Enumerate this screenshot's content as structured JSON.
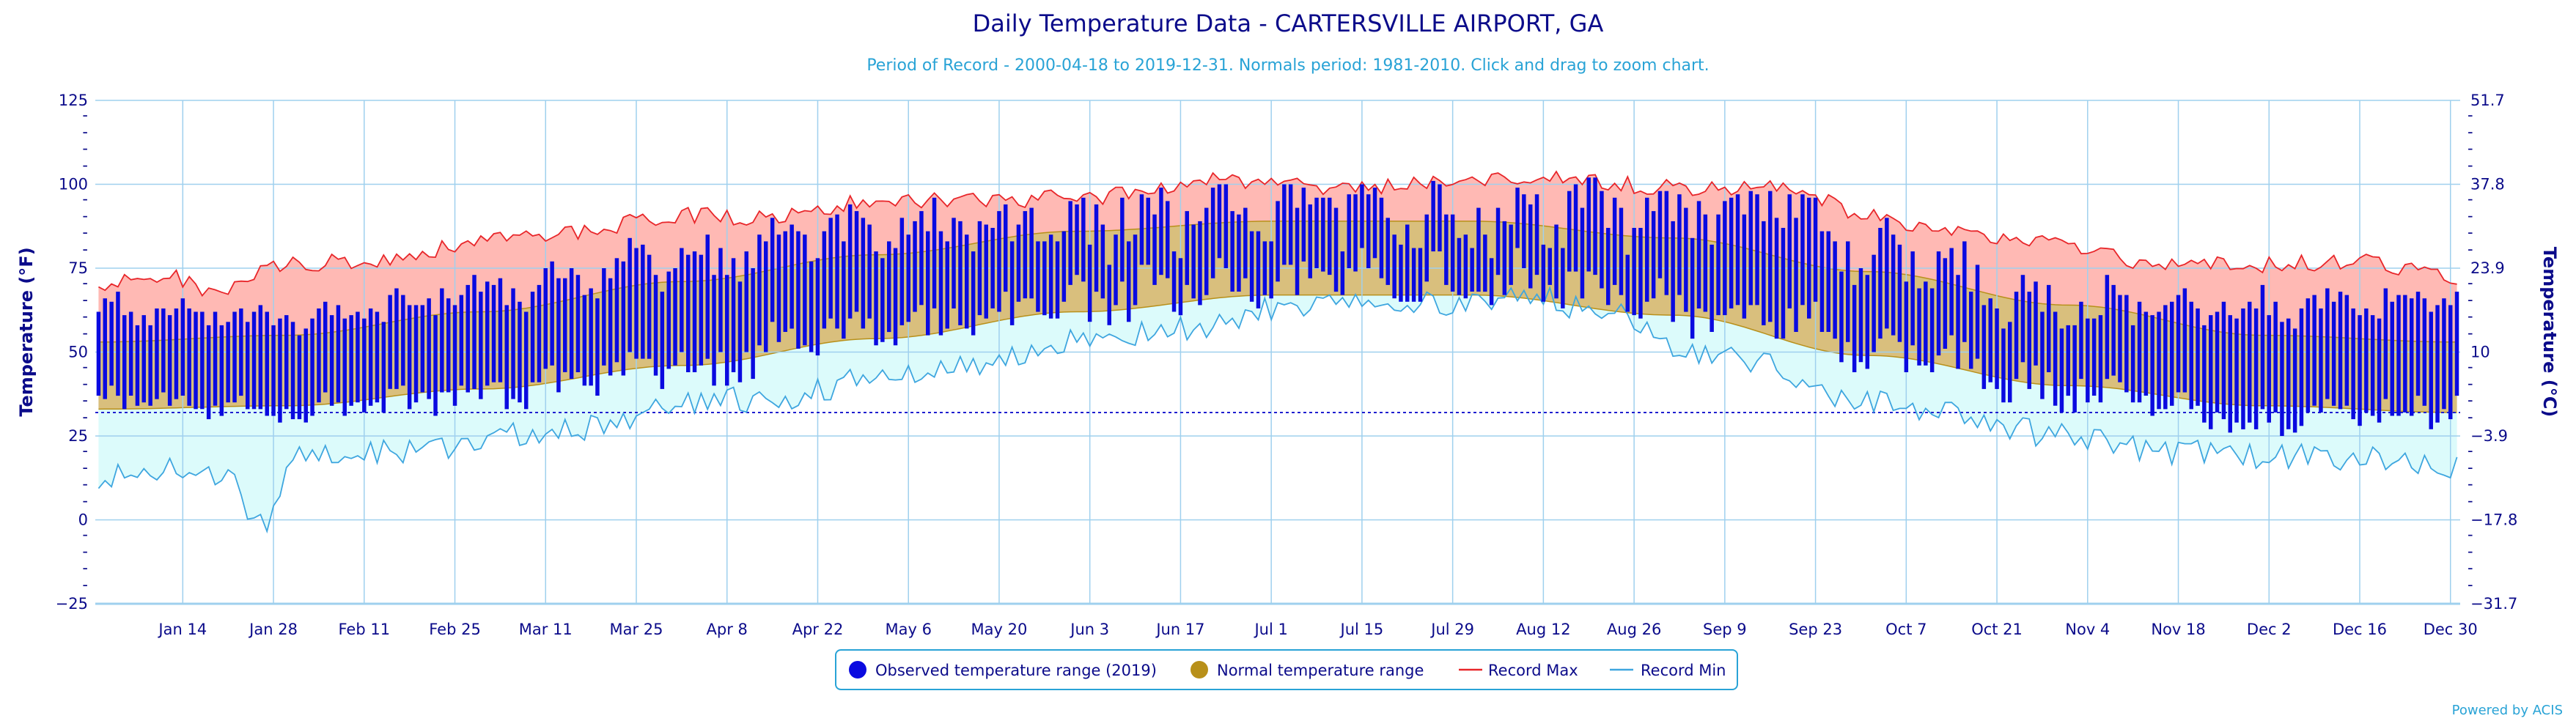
{
  "chart_data": {
    "type": "bar",
    "title": "Daily Temperature Data - CARTERSVILLE AIRPORT, GA",
    "subtitle": "Period of Record - 2000-04-18 to 2019-12-31. Normals period: 1981-2010. Click and drag to zoom chart.",
    "credit": "Powered by ACIS",
    "ylabel_left": "Temperature (°F)",
    "ylabel_right": "Temperature (°C)",
    "ylim": [
      -25,
      125
    ],
    "y_ticks_f": [
      "125",
      "100",
      "75",
      "50",
      "25",
      "0",
      "−25"
    ],
    "y_ticks_c": [
      "51.7",
      "37.8",
      "23.9",
      "10",
      "−3.9",
      "−17.8",
      "−31.7"
    ],
    "x_ticks": [
      "Jan 14",
      "Jan 28",
      "Feb 11",
      "Feb 25",
      "Mar 11",
      "Mar 25",
      "Apr 8",
      "Apr 22",
      "May 6",
      "May 20",
      "Jun 3",
      "Jun 17",
      "Jul 1",
      "Jul 15",
      "Jul 29",
      "Aug 12",
      "Aug 26",
      "Sep 9",
      "Sep 23",
      "Oct 7",
      "Oct 21",
      "Nov 4",
      "Nov 18",
      "Dec 2",
      "Dec 16",
      "Dec 30"
    ],
    "freezing_line_f": 32,
    "grid": true,
    "legend_position": "bottom",
    "legend": [
      {
        "label": "Observed temperature range (2019)",
        "color": "#0a0ae0",
        "marker": "circle"
      },
      {
        "label": "Normal temperature range",
        "color": "#b8901a",
        "marker": "circle"
      },
      {
        "label": "Record Max",
        "color": "#e8262a",
        "marker": "line"
      },
      {
        "label": "Record Min",
        "color": "#3ea6df",
        "marker": "line"
      }
    ],
    "days": 365,
    "normal_max_anchors": [
      [
        1,
        53
      ],
      [
        30,
        55
      ],
      [
        60,
        62
      ],
      [
        91,
        71
      ],
      [
        121,
        79
      ],
      [
        152,
        86
      ],
      [
        182,
        89
      ],
      [
        213,
        89
      ],
      [
        244,
        84
      ],
      [
        274,
        74
      ],
      [
        305,
        64
      ],
      [
        335,
        55
      ],
      [
        365,
        53
      ]
    ],
    "normal_min_anchors": [
      [
        1,
        33
      ],
      [
        30,
        34
      ],
      [
        60,
        39
      ],
      [
        91,
        46
      ],
      [
        121,
        54
      ],
      [
        152,
        62
      ],
      [
        182,
        67
      ],
      [
        213,
        67
      ],
      [
        244,
        61
      ],
      [
        274,
        49
      ],
      [
        305,
        40
      ],
      [
        335,
        34
      ],
      [
        365,
        32
      ]
    ],
    "record_max_anchors": [
      [
        1,
        70
      ],
      [
        10,
        73
      ],
      [
        20,
        68
      ],
      [
        30,
        76
      ],
      [
        40,
        77
      ],
      [
        50,
        79
      ],
      [
        60,
        84
      ],
      [
        75,
        86
      ],
      [
        91,
        91
      ],
      [
        105,
        90
      ],
      [
        121,
        95
      ],
      [
        135,
        95
      ],
      [
        152,
        96
      ],
      [
        165,
        98
      ],
      [
        172,
        102
      ],
      [
        182,
        100
      ],
      [
        195,
        99
      ],
      [
        213,
        101
      ],
      [
        222,
        102
      ],
      [
        230,
        101
      ],
      [
        244,
        99
      ],
      [
        258,
        99
      ],
      [
        264,
        97
      ],
      [
        274,
        90
      ],
      [
        290,
        85
      ],
      [
        305,
        82
      ],
      [
        320,
        76
      ],
      [
        335,
        76
      ],
      [
        350,
        77
      ],
      [
        365,
        72
      ]
    ],
    "record_min_anchors": [
      [
        1,
        12
      ],
      [
        10,
        15
      ],
      [
        20,
        12
      ],
      [
        27,
        -1
      ],
      [
        32,
        20
      ],
      [
        45,
        20
      ],
      [
        55,
        22
      ],
      [
        65,
        26
      ],
      [
        80,
        28
      ],
      [
        91,
        35
      ],
      [
        105,
        36
      ],
      [
        121,
        42
      ],
      [
        135,
        46
      ],
      [
        152,
        53
      ],
      [
        172,
        57
      ],
      [
        182,
        63
      ],
      [
        195,
        65
      ],
      [
        213,
        64
      ],
      [
        222,
        66
      ],
      [
        235,
        61
      ],
      [
        244,
        51
      ],
      [
        258,
        47
      ],
      [
        270,
        36
      ],
      [
        285,
        32
      ],
      [
        305,
        25
      ],
      [
        320,
        20
      ],
      [
        335,
        19
      ],
      [
        350,
        18
      ],
      [
        365,
        15
      ]
    ],
    "observed_max_anchors": [
      [
        1,
        63
      ],
      [
        30,
        60
      ],
      [
        60,
        68
      ],
      [
        91,
        76
      ],
      [
        121,
        86
      ],
      [
        152,
        90
      ],
      [
        182,
        93
      ],
      [
        213,
        92
      ],
      [
        244,
        93
      ],
      [
        258,
        95
      ],
      [
        274,
        80
      ],
      [
        305,
        63
      ],
      [
        335,
        64
      ],
      [
        365,
        66
      ]
    ],
    "observed_min_anchors": [
      [
        1,
        36
      ],
      [
        30,
        32
      ],
      [
        60,
        38
      ],
      [
        91,
        44
      ],
      [
        121,
        56
      ],
      [
        152,
        65
      ],
      [
        182,
        70
      ],
      [
        213,
        70
      ],
      [
        244,
        64
      ],
      [
        258,
        60
      ],
      [
        274,
        52
      ],
      [
        305,
        38
      ],
      [
        335,
        30
      ],
      [
        365,
        33
      ]
    ]
  },
  "colors": {
    "title": "#0b0b8a",
    "subtitle": "#29a3d6",
    "grid": "#9fd0ee",
    "axis_text": "#0b0b8a",
    "observed": "#0a0ae0",
    "normal_fill": "#d9bf7d",
    "normal_line": "#b8901a",
    "record_max_fill": "#ffb9b4",
    "record_max_line": "#e8262a",
    "record_min_fill": "#dcfbfb",
    "record_min_line": "#3ea6df",
    "freezing": "#1f1fd0"
  }
}
